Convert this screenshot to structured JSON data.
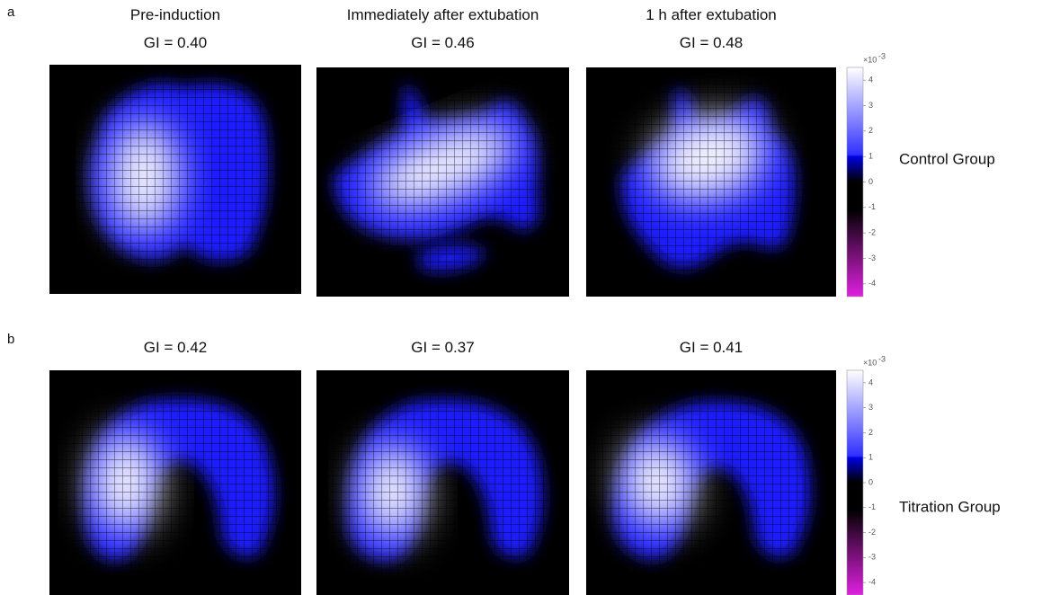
{
  "figure": {
    "panels": [
      {
        "label": "a",
        "group": "Control Group",
        "images": [
          {
            "title": "Pre-induction",
            "gi": "GI = 0.40"
          },
          {
            "title": "Immediately after extubation",
            "gi": "GI = 0.46"
          },
          {
            "title": "1 h after extubation",
            "gi": "GI = 0.48"
          }
        ],
        "colorbar": {
          "multiplier": "×10",
          "exponent": "-3",
          "lim": [
            -4.5,
            4.5
          ],
          "ticks": [
            4,
            3,
            2,
            1,
            0,
            -1,
            -2,
            -3,
            -4
          ]
        }
      },
      {
        "label": "b",
        "group": "Titration Group",
        "images": [
          {
            "gi": "GI = 0.42"
          },
          {
            "gi": "GI = 0.37"
          },
          {
            "gi": "GI = 0.41"
          }
        ],
        "colorbar": {
          "multiplier": "×10",
          "exponent": "-3",
          "lim": [
            -4.5,
            4.5
          ],
          "ticks": [
            4,
            3,
            2,
            1,
            0,
            -1,
            -2,
            -3,
            -4
          ]
        }
      }
    ]
  }
}
